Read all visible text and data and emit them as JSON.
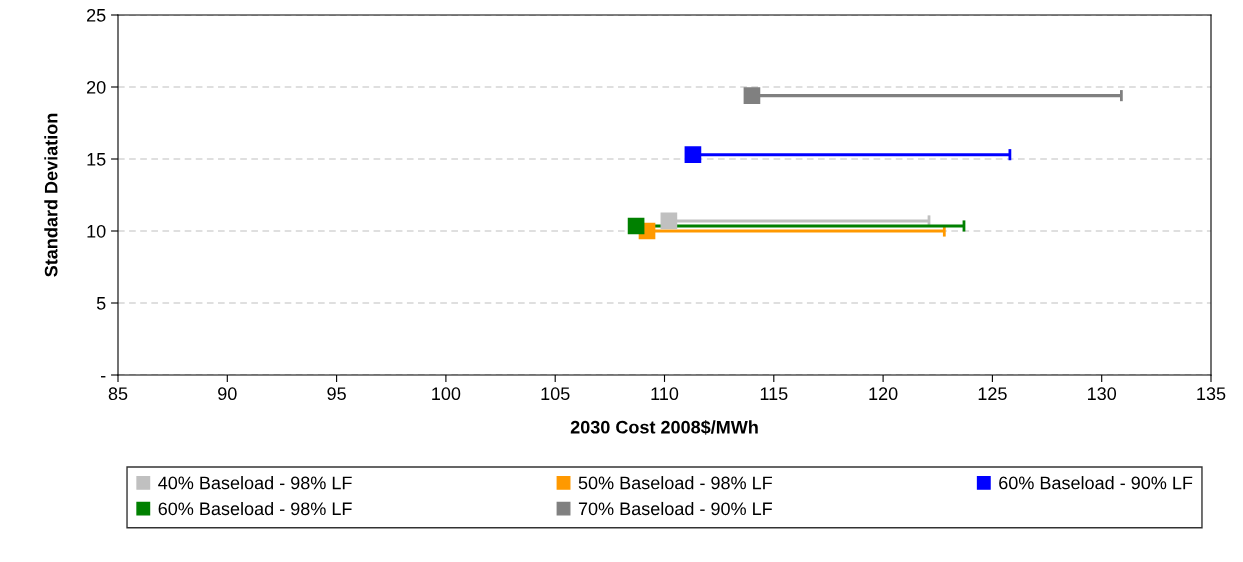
{
  "chart_data": {
    "type": "scatter",
    "xlabel": "2030 Cost 2008$/MWh",
    "ylabel": "Standard Deviation",
    "xlim": [
      85,
      135
    ],
    "xticks": [
      85,
      90,
      95,
      100,
      105,
      110,
      115,
      120,
      125,
      130,
      135
    ],
    "ylim": [
      0,
      25
    ],
    "yticks": [
      {
        "value": 0,
        "label": "-"
      },
      5,
      10,
      15,
      20,
      25
    ],
    "grid": "y",
    "legend": "bottom",
    "marker": "square",
    "series": [
      {
        "name": "40% Baseload - 98% LF",
        "color": "#c0c0c0",
        "x": [
          110.2
        ],
        "values": [
          10.7
        ],
        "xerrors": [
          [
            110.2,
            122.1
          ]
        ]
      },
      {
        "name": "50% Baseload - 98% LF",
        "color": "#ff9900",
        "x": [
          109.2
        ],
        "values": [
          10.0
        ],
        "xerrors": [
          [
            109.2,
            122.8
          ]
        ]
      },
      {
        "name": "60% Baseload - 90% LF",
        "color": "#0000ff",
        "x": [
          111.3
        ],
        "values": [
          15.3
        ],
        "xerrors": [
          [
            111.3,
            125.8
          ]
        ]
      },
      {
        "name": "60% Baseload - 98% LF",
        "color": "#008000",
        "x": [
          108.7
        ],
        "values": [
          10.35
        ],
        "xerrors": [
          [
            108.7,
            123.7
          ]
        ]
      },
      {
        "name": "70% Baseload - 90% LF",
        "color": "#808080",
        "x": [
          114.0
        ],
        "values": [
          19.4
        ],
        "xerrors": [
          [
            114.0,
            130.9
          ]
        ]
      }
    ]
  }
}
